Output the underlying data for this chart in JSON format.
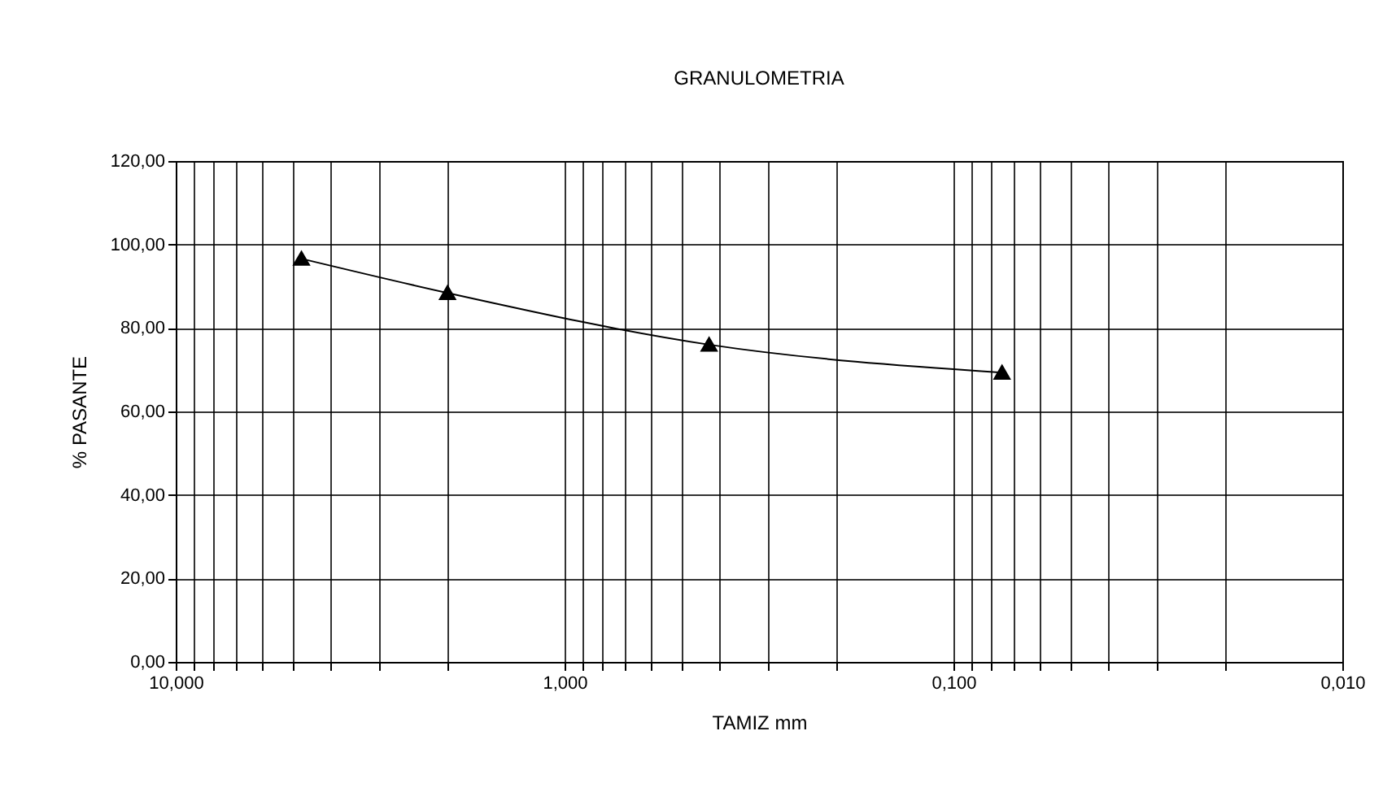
{
  "chart_data": {
    "type": "line",
    "title": "GRANULOMETRIA",
    "xlabel": "TAMIZ mm",
    "ylabel": "% PASANTE",
    "x": [
      4.75,
      2.0,
      0.425,
      0.075
    ],
    "series": [
      {
        "color": "#000000",
        "values": [
          96.6,
          88.4,
          76.0,
          69.3
        ]
      }
    ],
    "log": "x",
    "marker": "triangle",
    "line_style": "solid",
    "grid": true,
    "xlim": [
      10,
      0.01
    ],
    "xticks": [
      {
        "value": 10,
        "label": "10,000"
      },
      {
        "value": 9,
        "label": null
      },
      {
        "value": 8,
        "label": null
      },
      {
        "value": 7,
        "label": null
      },
      {
        "value": 6,
        "label": null
      },
      {
        "value": 5,
        "label": null
      },
      {
        "value": 4,
        "label": null
      },
      {
        "value": 3,
        "label": null
      },
      {
        "value": 2,
        "label": null
      },
      {
        "value": 1,
        "label": "1,000"
      },
      {
        "value": 0.9,
        "label": null
      },
      {
        "value": 0.8,
        "label": null
      },
      {
        "value": 0.7,
        "label": null
      },
      {
        "value": 0.6,
        "label": null
      },
      {
        "value": 0.5,
        "label": null
      },
      {
        "value": 0.4,
        "label": null
      },
      {
        "value": 0.3,
        "label": null
      },
      {
        "value": 0.2,
        "label": null
      },
      {
        "value": 0.1,
        "label": "0,100"
      },
      {
        "value": 0.09,
        "label": null
      },
      {
        "value": 0.08,
        "label": null
      },
      {
        "value": 0.07,
        "label": null
      },
      {
        "value": 0.06,
        "label": null
      },
      {
        "value": 0.05,
        "label": null
      },
      {
        "value": 0.04,
        "label": null
      },
      {
        "value": 0.03,
        "label": null
      },
      {
        "value": 0.02,
        "label": null
      },
      {
        "value": 0.01,
        "label": "0,010"
      }
    ],
    "ylim": [
      0,
      120
    ],
    "yticks": [
      {
        "value": 0,
        "label": "0,00"
      },
      {
        "value": 20,
        "label": "20,00"
      },
      {
        "value": 40,
        "label": "40,00"
      },
      {
        "value": 60,
        "label": "60,00"
      },
      {
        "value": 80,
        "label": "80,00"
      },
      {
        "value": 100,
        "label": "100,00"
      },
      {
        "value": 120,
        "label": "120,00"
      }
    ]
  }
}
